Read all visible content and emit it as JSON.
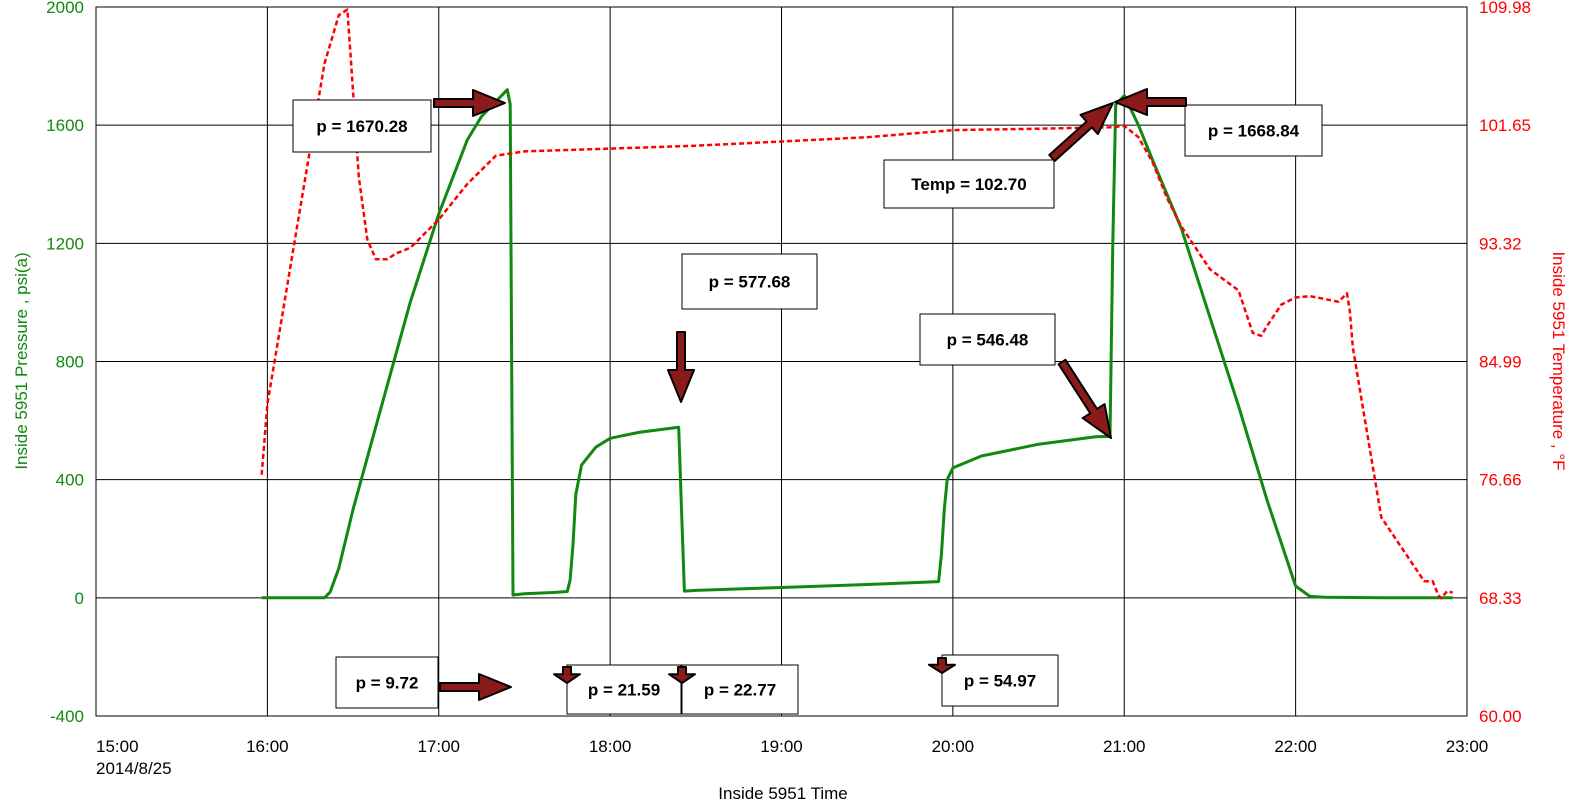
{
  "chart_data": {
    "type": "line",
    "title": "",
    "xlabel": "Inside 5951 Time",
    "x_first_tick_sublabel": "2014/8/25",
    "x_ticks": [
      "15:00",
      "16:00",
      "17:00",
      "18:00",
      "19:00",
      "20:00",
      "21:00",
      "22:00",
      "23:00"
    ],
    "xlim": [
      "15:00",
      "23:00"
    ],
    "ylabel_left": "Inside 5951 Pressure , psi(a)",
    "ylim_left": [
      -400,
      2000
    ],
    "yticks_left": [
      "-400",
      "0",
      "400",
      "800",
      "1200",
      "1600",
      "2000"
    ],
    "ylabel_right": "Inside 5951 Temperature , °F",
    "ylim_right": [
      60.0,
      109.98
    ],
    "yticks_right": [
      "60.00",
      "68.33",
      "76.66",
      "84.99",
      "93.32",
      "101.65",
      "109.98"
    ],
    "grid": true,
    "colors": {
      "pressure": "#118811",
      "temperature": "#ff0000",
      "arrow": "#8b1a1a"
    },
    "series": [
      {
        "axis": "left",
        "style": "solid",
        "x": [
          "15:58",
          "16:20",
          "16:22",
          "16:25",
          "16:30",
          "16:40",
          "16:50",
          "17:00",
          "17:10",
          "17:15",
          "17:22",
          "17:24",
          "17:25",
          "17:26",
          "17:30",
          "17:40",
          "17:45",
          "17:46",
          "17:47",
          "17:48",
          "17:50",
          "17:55",
          "18:00",
          "18:10",
          "18:24",
          "18:25",
          "18:26",
          "18:30",
          "19:00",
          "19:30",
          "19:55",
          "19:56",
          "19:57",
          "19:58",
          "20:00",
          "20:10",
          "20:30",
          "20:50",
          "20:55",
          "20:56",
          "20:57",
          "21:00",
          "21:05",
          "21:10",
          "21:20",
          "21:30",
          "21:40",
          "21:50",
          "22:00",
          "22:05",
          "22:10",
          "22:30",
          "22:55"
        ],
        "y": [
          0,
          0,
          20,
          100,
          300,
          650,
          1000,
          1300,
          1550,
          1630,
          1700,
          1720,
          1670.28,
          9.72,
          14,
          18,
          21.59,
          60,
          180,
          350,
          450,
          510,
          540,
          560,
          577.68,
          300,
          22.77,
          25,
          35,
          45,
          54.97,
          150,
          300,
          400,
          440,
          480,
          520,
          545,
          546.48,
          1200,
          1668.84,
          1700,
          1600,
          1480,
          1250,
          950,
          650,
          330,
          40,
          5,
          2,
          0,
          0
        ]
      },
      {
        "axis": "right",
        "style": "dashed",
        "x": [
          "15:58",
          "16:00",
          "16:05",
          "16:10",
          "16:15",
          "16:20",
          "16:25",
          "16:28",
          "16:30",
          "16:32",
          "16:35",
          "16:38",
          "16:42",
          "16:45",
          "16:50",
          "17:00",
          "17:10",
          "17:20",
          "17:30",
          "18:00",
          "18:30",
          "19:00",
          "19:30",
          "20:00",
          "20:30",
          "20:55",
          "21:00",
          "21:05",
          "21:10",
          "21:15",
          "21:20",
          "21:25",
          "21:30",
          "21:40",
          "21:45",
          "21:48",
          "21:50",
          "21:55",
          "22:00",
          "22:05",
          "22:10",
          "22:15",
          "22:18",
          "22:19",
          "22:20",
          "22:25",
          "22:30",
          "22:40",
          "22:45",
          "22:48",
          "22:50",
          "22:51",
          "22:53",
          "22:55"
        ],
        "y": [
          77.0,
          82,
          88,
          94,
          100,
          106,
          109.4,
          109.8,
          104,
          98,
          93.6,
          92.2,
          92.2,
          92.6,
          93.0,
          95.0,
          97.5,
          99.5,
          99.8,
          100.0,
          100.2,
          100.5,
          100.8,
          101.3,
          101.4,
          101.5,
          101.6,
          100.8,
          99.0,
          96.5,
          94.5,
          93.0,
          91.5,
          90.0,
          87.0,
          86.8,
          87.5,
          89.0,
          89.5,
          89.6,
          89.4,
          89.2,
          89.8,
          88.5,
          86.0,
          80.0,
          74.0,
          71.0,
          69.5,
          69.5,
          68.5,
          68.3,
          68.8,
          68.7
        ]
      }
    ],
    "annotations": [
      {
        "label": "p = 1670.28"
      },
      {
        "label": "p = 9.72"
      },
      {
        "label": "p = 21.59"
      },
      {
        "label": "p = 577.68"
      },
      {
        "label": "p = 22.77"
      },
      {
        "label": "p = 546.48"
      },
      {
        "label": "p = 54.97"
      },
      {
        "label": "Temp = 102.70"
      },
      {
        "label": "p = 1668.84"
      }
    ]
  }
}
